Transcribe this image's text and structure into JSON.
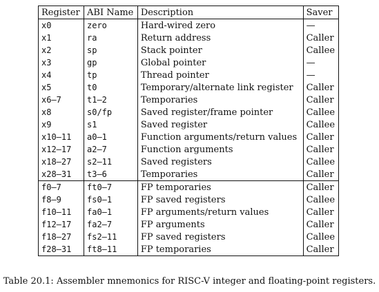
{
  "table": {
    "headers": [
      "Register",
      "ABI Name",
      "Description",
      "Saver"
    ],
    "rows": [
      {
        "register": "x0",
        "abi": "zero",
        "description": "Hard-wired zero",
        "saver": "—"
      },
      {
        "register": "x1",
        "abi": "ra",
        "description": "Return address",
        "saver": "Caller"
      },
      {
        "register": "x2",
        "abi": "sp",
        "description": "Stack pointer",
        "saver": "Callee"
      },
      {
        "register": "x3",
        "abi": "gp",
        "description": "Global pointer",
        "saver": "—"
      },
      {
        "register": "x4",
        "abi": "tp",
        "description": "Thread pointer",
        "saver": "—"
      },
      {
        "register": "x5",
        "abi": "t0",
        "description": "Temporary/alternate link register",
        "saver": "Caller"
      },
      {
        "register": "x6–7",
        "abi": "t1–2",
        "description": "Temporaries",
        "saver": "Caller"
      },
      {
        "register": "x8",
        "abi": "s0/fp",
        "description": "Saved register/frame pointer",
        "saver": "Callee"
      },
      {
        "register": "x9",
        "abi": "s1",
        "description": "Saved register",
        "saver": "Callee"
      },
      {
        "register": "x10–11",
        "abi": "a0–1",
        "description": "Function arguments/return values",
        "saver": "Caller"
      },
      {
        "register": "x12–17",
        "abi": "a2–7",
        "description": "Function arguments",
        "saver": "Caller"
      },
      {
        "register": "x18–27",
        "abi": "s2–11",
        "description": "Saved registers",
        "saver": "Callee"
      },
      {
        "register": "x28–31",
        "abi": "t3–6",
        "description": "Temporaries",
        "saver": "Caller"
      },
      {
        "register": "f0–7",
        "abi": "ft0–7",
        "description": "FP temporaries",
        "saver": "Caller"
      },
      {
        "register": "f8–9",
        "abi": "fs0–1",
        "description": "FP saved registers",
        "saver": "Callee"
      },
      {
        "register": "f10–11",
        "abi": "fa0–1",
        "description": "FP arguments/return values",
        "saver": "Caller"
      },
      {
        "register": "f12–17",
        "abi": "fa2–7",
        "description": "FP arguments",
        "saver": "Caller"
      },
      {
        "register": "f18–27",
        "abi": "fs2–11",
        "description": "FP saved registers",
        "saver": "Callee"
      },
      {
        "register": "f28–31",
        "abi": "ft8–11",
        "description": "FP temporaries",
        "saver": "Caller"
      }
    ]
  },
  "caption": "Table 20.1: Assembler mnemonics for RISC-V integer and floating-point registers."
}
